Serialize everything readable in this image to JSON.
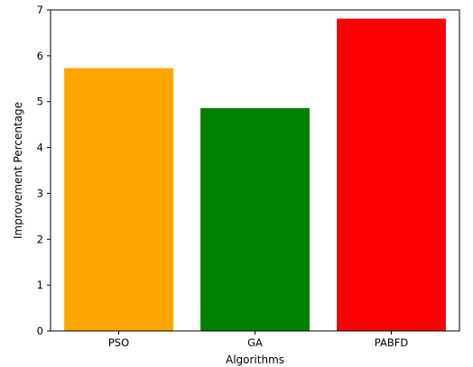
{
  "chart_data": {
    "type": "bar",
    "categories": [
      "PSO",
      "GA",
      "PABFD"
    ],
    "values": [
      5.73,
      4.86,
      6.81
    ],
    "colors": [
      "#FFA500",
      "#008000",
      "#FF0000"
    ],
    "xlabel": "Algorithms",
    "ylabel": "Improvement Percentage",
    "ylim": [
      0,
      7
    ],
    "yticks": [
      0,
      1,
      2,
      3,
      4,
      5,
      6,
      7
    ],
    "grid": false,
    "legend": "none"
  }
}
